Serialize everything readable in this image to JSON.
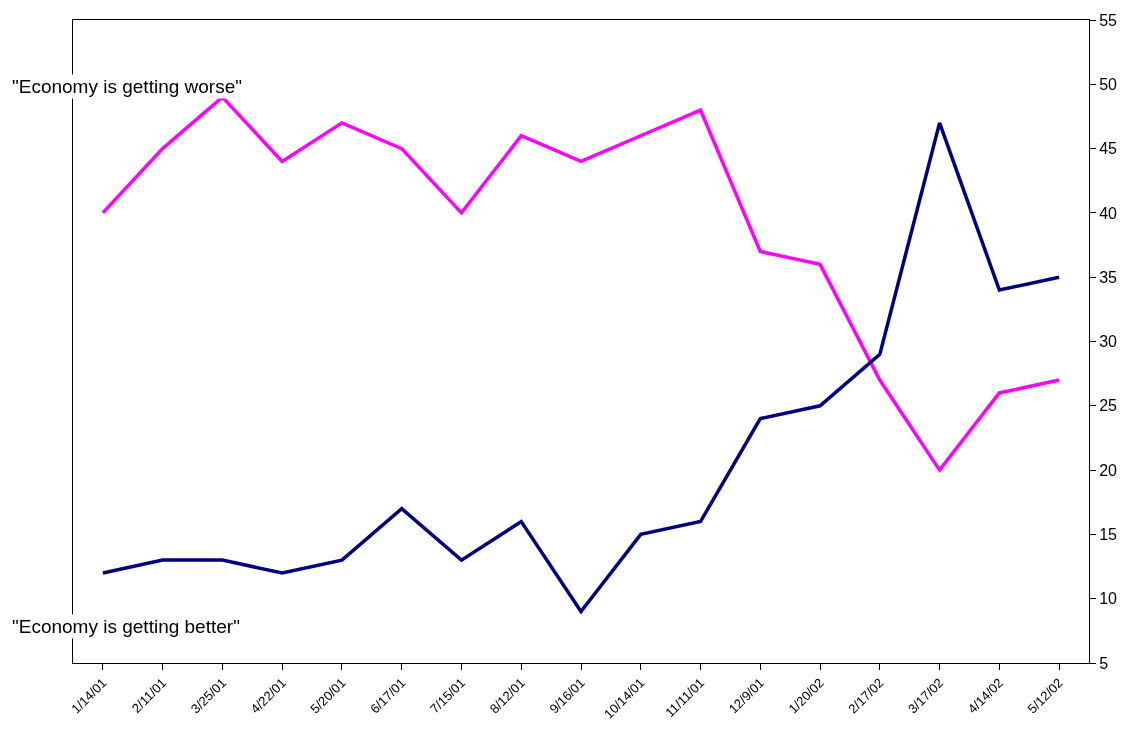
{
  "chart_data": {
    "type": "line",
    "categories": [
      "1/14/01",
      "2/11/01",
      "3/25/01",
      "4/22/01",
      "5/20/01",
      "6/17/01",
      "7/15/01",
      "8/12/01",
      "9/16/01",
      "10/14/01",
      "11/11/01",
      "12/9/01",
      "1/20/02",
      "2/17/02",
      "3/17/02",
      "4/14/02",
      "5/12/02"
    ],
    "series": [
      {
        "color": "#ff00ff",
        "values": [
          40,
          45,
          49,
          44,
          47,
          45,
          40,
          46,
          44,
          46,
          48,
          37,
          36,
          27,
          20,
          26,
          27
        ]
      },
      {
        "color": "#000080",
        "values": [
          12,
          13,
          13,
          12,
          13,
          17,
          13,
          16,
          9,
          15,
          16,
          24,
          25,
          29,
          47,
          34,
          35
        ]
      }
    ],
    "ylim": [
      5,
      55
    ],
    "yticks": [
      5,
      10,
      15,
      20,
      25,
      30,
      35,
      40,
      45,
      50,
      55
    ],
    "annotations": [
      "\"Economy is getting worse\"",
      "\"Economy is getting better\""
    ],
    "marker": "none",
    "line_style": "solid"
  }
}
